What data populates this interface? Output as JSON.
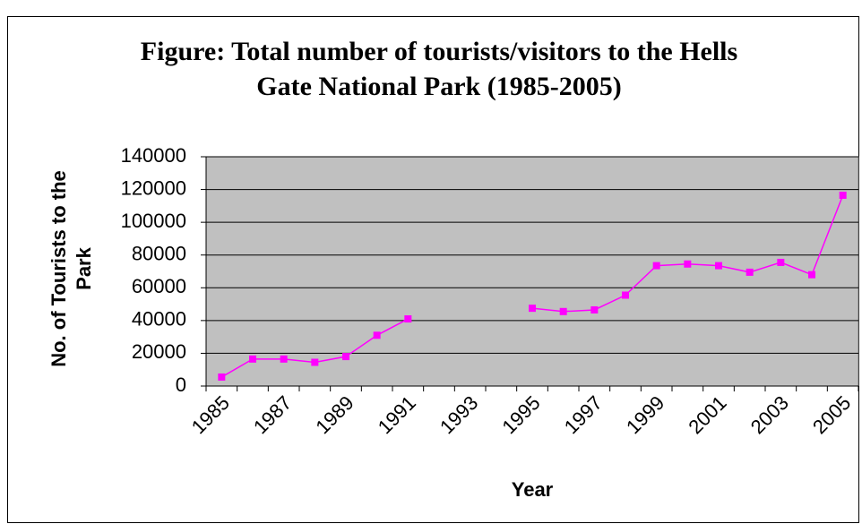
{
  "chart_data": {
    "type": "line",
    "title": "Figure: Total number of tourists/visitors to the Hells Gate National Park (1985-2005)",
    "x_label": "Year",
    "y_label": "No. of Tourists to the Park",
    "categories": [
      "1985",
      null,
      "1987",
      null,
      "1989",
      null,
      "1991",
      null,
      "1993",
      null,
      "1995",
      null,
      "1997",
      null,
      "1999",
      null,
      "2001",
      null,
      "2003",
      null,
      "2005"
    ],
    "series": [
      {
        "color": "#ff00ff",
        "values": [
          5500,
          16500,
          16500,
          14500,
          18000,
          31000,
          41000,
          null,
          null,
          null,
          47500,
          45500,
          46500,
          55500,
          73500,
          74500,
          73500,
          69500,
          75500,
          68000,
          116500
        ]
      }
    ],
    "ylim": [
      0,
      140000
    ],
    "yticks": [
      0,
      20000,
      40000,
      60000,
      80000,
      100000,
      120000,
      140000
    ],
    "grid": true,
    "plot_background": "#c0c0c0"
  }
}
